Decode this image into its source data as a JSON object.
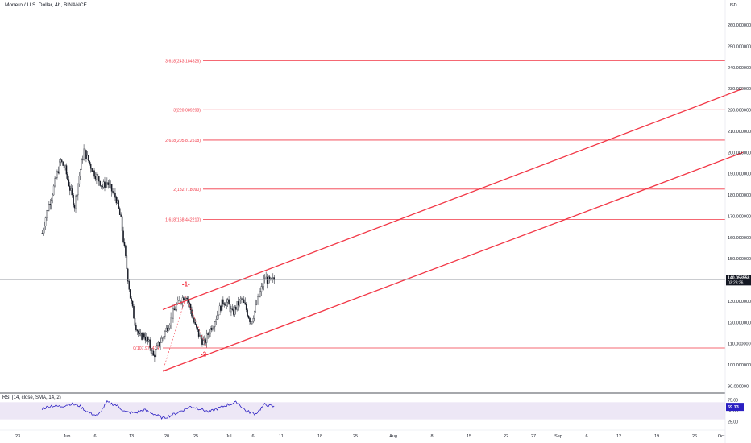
{
  "header": {
    "title": "Monero / U.S. Dollar, 4h, BINANCE"
  },
  "price_axis": {
    "currency": "USD"
  },
  "price_tag": {
    "price": "140.058558",
    "countdown": "03:23:26"
  },
  "rsi_panel": {
    "label": "RSI (14, close, SMA, 14, 2)",
    "value": "59.13"
  },
  "colors": {
    "accent_red": "#f23645",
    "rsi_line": "#2b1fc2",
    "rsi_band": "#ede7f6",
    "candle": "#131722",
    "price_tag_bg": "#131722"
  },
  "chart_data": {
    "type": "candlestick",
    "symbol": "XMRUSD",
    "timeframe": "4h",
    "exchange": "BINANCE",
    "ylim": [
      90,
      265
    ],
    "yticks": [
      "90.000000",
      "100.000000",
      "110.000000",
      "120.000000",
      "130.000000",
      "140.000000",
      "150.000000",
      "160.000000",
      "170.000000",
      "180.000000",
      "190.000000",
      "200.000000",
      "210.000000",
      "220.000000",
      "230.000000",
      "240.000000",
      "250.000000",
      "260.000000"
    ],
    "xticks": [
      "23",
      "Jun",
      "6",
      "13",
      "20",
      "25",
      "Jul",
      "6",
      "11",
      "18",
      "25",
      "Aug",
      "8",
      "15",
      "22",
      "27",
      "Sep",
      "6",
      "12",
      "19",
      "26",
      "Oct"
    ],
    "price_path": [
      {
        "d": -26,
        "p": 162
      },
      {
        "d": -25,
        "p": 172
      },
      {
        "d": -24,
        "p": 179
      },
      {
        "d": -23,
        "p": 188
      },
      {
        "d": -22,
        "p": 196
      },
      {
        "d": -21,
        "p": 192
      },
      {
        "d": -20,
        "p": 183
      },
      {
        "d": -19,
        "p": 175
      },
      {
        "d": -18,
        "p": 189
      },
      {
        "d": -17,
        "p": 201
      },
      {
        "d": -16,
        "p": 196
      },
      {
        "d": -15,
        "p": 191
      },
      {
        "d": -14,
        "p": 188
      },
      {
        "d": -13,
        "p": 184
      },
      {
        "d": -12,
        "p": 186
      },
      {
        "d": -11,
        "p": 182
      },
      {
        "d": -10,
        "p": 178
      },
      {
        "d": -9,
        "p": 168
      },
      {
        "d": -8,
        "p": 150
      },
      {
        "d": -7,
        "p": 132
      },
      {
        "d": -6,
        "p": 120
      },
      {
        "d": -5,
        "p": 113
      },
      {
        "d": -4,
        "p": 114
      },
      {
        "d": -3,
        "p": 110
      },
      {
        "d": -2,
        "p": 104
      },
      {
        "d": -1,
        "p": 109
      },
      {
        "d": 0,
        "p": 113
      },
      {
        "d": 1,
        "p": 118
      },
      {
        "d": 2,
        "p": 123
      },
      {
        "d": 3,
        "p": 128
      },
      {
        "d": 4,
        "p": 131
      },
      {
        "d": 5,
        "p": 133
      },
      {
        "d": 6,
        "p": 126
      },
      {
        "d": 7,
        "p": 118
      },
      {
        "d": 8,
        "p": 113
      },
      {
        "d": 9,
        "p": 110
      },
      {
        "d": 10,
        "p": 116
      },
      {
        "d": 11,
        "p": 120
      },
      {
        "d": 12,
        "p": 125
      },
      {
        "d": 13,
        "p": 130
      },
      {
        "d": 14,
        "p": 129
      },
      {
        "d": 15,
        "p": 124
      },
      {
        "d": 16,
        "p": 128
      },
      {
        "d": 17,
        "p": 131
      },
      {
        "d": 18,
        "p": 126
      },
      {
        "d": 19,
        "p": 120
      },
      {
        "d": 20,
        "p": 127
      },
      {
        "d": 21,
        "p": 134
      },
      {
        "d": 22,
        "p": 141
      },
      {
        "d": 23,
        "p": 139
      },
      {
        "d": 24,
        "p": 140
      }
    ],
    "current_price": 140.058558,
    "fib_levels": [
      {
        "label": "0(107.975434)",
        "value": 107.975434
      },
      {
        "label": "1.618(168.442210)",
        "value": 168.44221
      },
      {
        "label": "2(182.718090)",
        "value": 182.71809
      },
      {
        "label": "2.618(205.812518)",
        "value": 205.812518
      },
      {
        "label": "3(220.089298)",
        "value": 220.089298
      },
      {
        "label": "3.618(243.184826)",
        "value": 243.184826
      }
    ],
    "channel_lines": [
      {
        "from": {
          "d": 0,
          "p": 126
        },
        "to": {
          "d": 125,
          "p": 230
        }
      },
      {
        "from": {
          "d": 0,
          "p": 97
        },
        "to": {
          "d": 125,
          "p": 200
        }
      }
    ],
    "wave_labels": [
      {
        "label": "-1-",
        "d": 5,
        "p": 137
      },
      {
        "label": "-2-",
        "d": 9,
        "p": 104
      }
    ],
    "rsi": {
      "ylim": [
        20,
        80
      ],
      "ticks": [
        "75.00",
        "50.00",
        "25.00"
      ],
      "band": [
        30,
        70
      ],
      "path": [
        {
          "d": -26,
          "p": 55
        },
        {
          "d": -24,
          "p": 62
        },
        {
          "d": -22,
          "p": 60
        },
        {
          "d": -20,
          "p": 66
        },
        {
          "d": -18,
          "p": 62
        },
        {
          "d": -16,
          "p": 46
        },
        {
          "d": -14,
          "p": 38
        },
        {
          "d": -12,
          "p": 70
        },
        {
          "d": -10,
          "p": 63
        },
        {
          "d": -8,
          "p": 47
        },
        {
          "d": -6,
          "p": 45
        },
        {
          "d": -4,
          "p": 52
        },
        {
          "d": -2,
          "p": 43
        },
        {
          "d": 0,
          "p": 33
        },
        {
          "d": 2,
          "p": 40
        },
        {
          "d": 4,
          "p": 50
        },
        {
          "d": 6,
          "p": 60
        },
        {
          "d": 8,
          "p": 55
        },
        {
          "d": 10,
          "p": 47
        },
        {
          "d": 12,
          "p": 56
        },
        {
          "d": 14,
          "p": 64
        },
        {
          "d": 16,
          "p": 70
        },
        {
          "d": 18,
          "p": 49
        },
        {
          "d": 20,
          "p": 43
        },
        {
          "d": 22,
          "p": 65
        },
        {
          "d": 24,
          "p": 59
        }
      ]
    },
    "grid": false,
    "legend": "none"
  }
}
